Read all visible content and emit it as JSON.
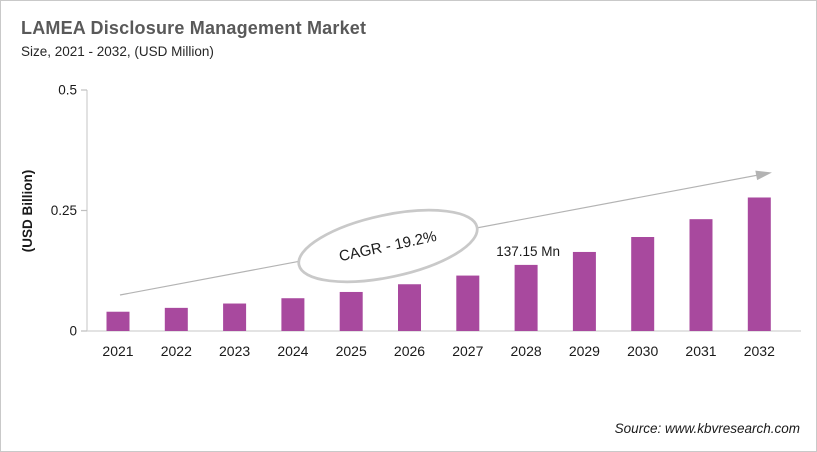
{
  "header": {
    "title": "LAMEA Disclosure Management Market",
    "subtitle": "Size, 2021 - 2032, (USD Million)"
  },
  "footer": {
    "source": "Source: www.kbvresearch.com"
  },
  "chart_data": {
    "type": "bar",
    "title": "LAMEA Disclosure Management Market",
    "subtitle": "Size, 2021 - 2032, (USD Million)",
    "categories": [
      "2021",
      "2022",
      "2023",
      "2024",
      "2025",
      "2026",
      "2027",
      "2028",
      "2029",
      "2030",
      "2031",
      "2032"
    ],
    "values": [
      0.04,
      0.048,
      0.057,
      0.068,
      0.081,
      0.097,
      0.115,
      0.13715,
      0.164,
      0.195,
      0.232,
      0.277
    ],
    "unit": "USD Billion",
    "ylabel": "(USD Billion)",
    "xlabel": "",
    "ylim": [
      0,
      0.5
    ],
    "yticks": [
      0,
      0.25,
      0.5
    ],
    "ytick_labels": [
      "0",
      "0.25",
      "0.5"
    ],
    "grid": false,
    "legend_position": "none",
    "bar_color": "#A8499E",
    "annotations": {
      "cagr_label": "CAGR - 19.2%",
      "data_label": {
        "category": "2028",
        "text": "137.15 Mn"
      },
      "trend_arrow": true
    }
  },
  "colors": {
    "title": "#595959",
    "text": "#1A1A1A",
    "axis": "#D2D2D2",
    "tick": "#BFBFBF",
    "arrow": "#B3B3B3",
    "ellipse_stroke": "#C9C9C9"
  }
}
